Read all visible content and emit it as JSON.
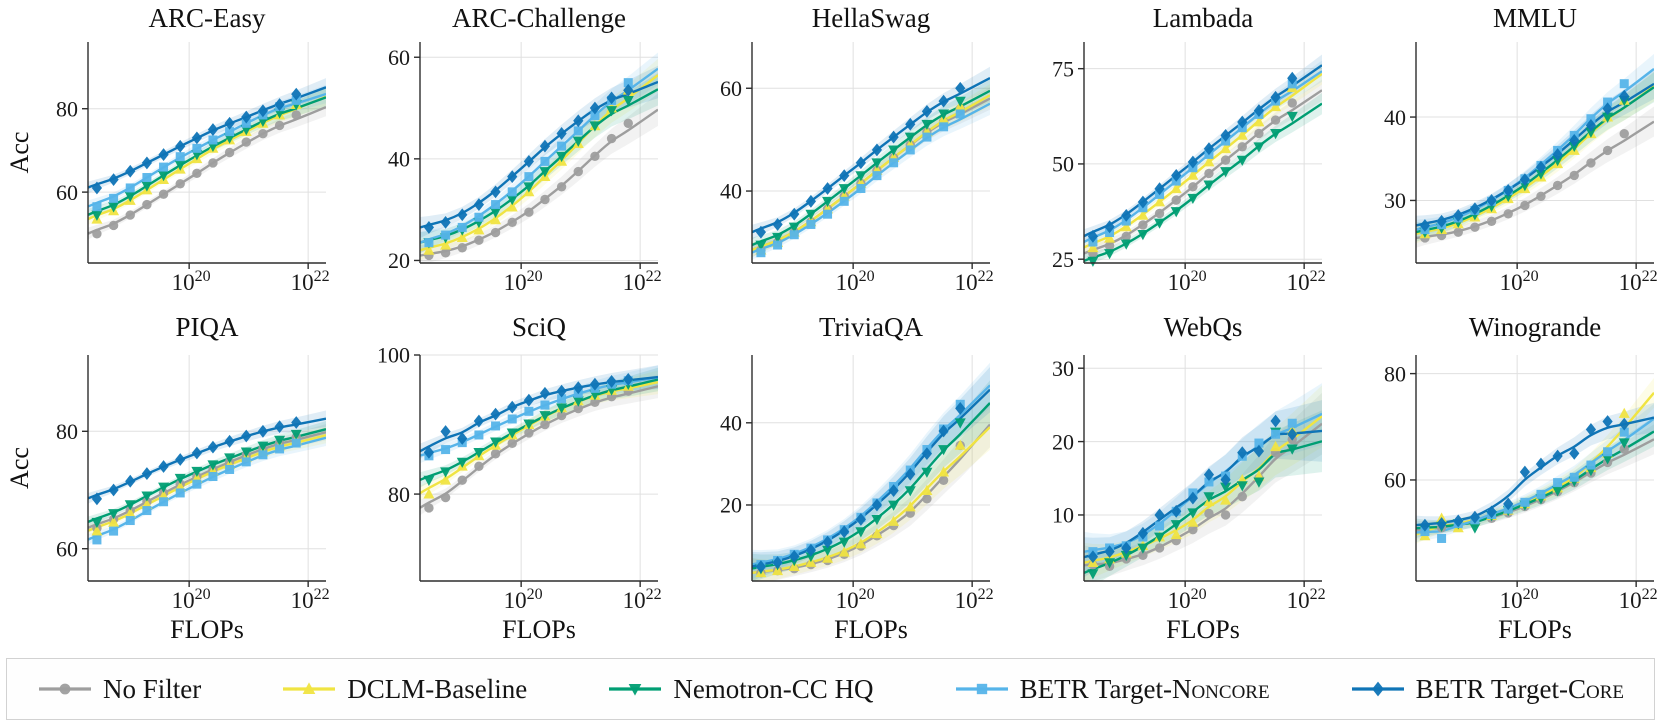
{
  "figure": {
    "ylabel": "Acc",
    "xlabel": "FLOPs",
    "xscale": "log10",
    "xlim_log10": [
      18.3,
      22.3
    ],
    "xticks": [
      {
        "base": "10",
        "exp": "20",
        "log": 20
      },
      {
        "base": "10",
        "exp": "22",
        "log": 22
      }
    ],
    "x_points_log10": [
      18.45,
      18.73,
      19.01,
      19.29,
      19.57,
      19.85,
      20.13,
      20.4,
      20.68,
      20.96,
      21.24,
      21.52,
      21.8
    ],
    "grid": true
  },
  "legend": {
    "position": "bottom",
    "items": [
      {
        "id": "no_filter",
        "label": "No Filter",
        "label_caps": "",
        "marker": "circle",
        "color": "#9e9e9e"
      },
      {
        "id": "dclm",
        "label": "DCLM-Baseline",
        "label_caps": "",
        "marker": "triangle-up",
        "color": "#F0E442"
      },
      {
        "id": "nemotron",
        "label": "Nemotron-CC HQ",
        "label_caps": "",
        "marker": "triangle-down",
        "color": "#009E73"
      },
      {
        "id": "noncore",
        "label": "BETR Target-N",
        "label_caps": "oncore",
        "marker": "square",
        "color": "#56B4E9"
      },
      {
        "id": "core",
        "label": "BETR Target-C",
        "label_caps": "ore",
        "marker": "diamond",
        "color": "#0F74B6"
      }
    ]
  },
  "chart_data": [
    {
      "type": "line",
      "title": "ARC-Easy",
      "ylim": [
        43,
        96
      ],
      "yticks": [
        60,
        80
      ],
      "band_scale": 2.2,
      "series": {
        "no_filter": [
          50,
          52,
          54.5,
          57,
          59.5,
          62,
          64.5,
          67,
          69.5,
          72,
          74,
          76,
          78.5
        ],
        "dclm": [
          53.5,
          55.5,
          58,
          60.5,
          63,
          65.5,
          68,
          70.5,
          72.5,
          74.5,
          76.5,
          78.5,
          81
        ],
        "nemotron": [
          54.5,
          56.5,
          59,
          61.5,
          64,
          66.5,
          69,
          71,
          73,
          75,
          77,
          79,
          81
        ],
        "noncore": [
          56.5,
          58.5,
          61,
          63.5,
          66,
          68.5,
          70.5,
          72.5,
          74.5,
          76.5,
          78.5,
          80.5,
          82
        ],
        "core": [
          61,
          63,
          65,
          67,
          69,
          71,
          73,
          75,
          76.5,
          78,
          79.5,
          81,
          83.5
        ]
      }
    },
    {
      "type": "line",
      "title": "ARC-Challenge",
      "ylim": [
        19.5,
        63
      ],
      "yticks": [
        20,
        40,
        60
      ],
      "band_scale": 3.2,
      "series": {
        "no_filter": [
          21,
          21.5,
          22.5,
          24,
          25.5,
          27.5,
          29.5,
          32,
          34.5,
          37.5,
          40.5,
          44,
          47
        ],
        "dclm": [
          22,
          23,
          24.5,
          26,
          28,
          30.5,
          33.5,
          36.5,
          39.5,
          43,
          46.5,
          50,
          53.5
        ],
        "nemotron": [
          23.5,
          24.5,
          26,
          27.5,
          29.5,
          32,
          34.5,
          37.5,
          40.5,
          43.5,
          46.5,
          49.5,
          51.5
        ],
        "noncore": [
          23.5,
          25,
          26.5,
          28.5,
          31,
          33.5,
          36.5,
          39.5,
          42.5,
          45.5,
          48.5,
          51.5,
          55
        ],
        "core": [
          26.5,
          27.5,
          29,
          31,
          33.5,
          36.5,
          39.5,
          42.5,
          45,
          47.5,
          50,
          52,
          53.5
        ]
      }
    },
    {
      "type": "line",
      "title": "HellaSwag",
      "ylim": [
        26,
        69
      ],
      "yticks": [
        40,
        60
      ],
      "band_scale": 2.2,
      "series": {
        "no_filter": [
          28.5,
          30,
          32,
          34,
          36.5,
          39,
          41.5,
          44,
          46.5,
          49,
          51.5,
          53.5,
          56
        ],
        "dclm": [
          28.5,
          30,
          32,
          34,
          36.5,
          39,
          41.5,
          44,
          46.5,
          49,
          51.5,
          54,
          56.5
        ],
        "nemotron": [
          29.5,
          31,
          33,
          35.5,
          38,
          40.5,
          43,
          45.5,
          48,
          50.5,
          53,
          55,
          57.5
        ],
        "noncore": [
          28,
          29.5,
          31.5,
          33.5,
          35.5,
          38,
          40.5,
          43,
          45.5,
          48,
          50.5,
          52.5,
          55
        ],
        "core": [
          32,
          33.5,
          35.5,
          38,
          40.5,
          43,
          45.5,
          48,
          50.5,
          53,
          55.5,
          57.5,
          60
        ]
      }
    },
    {
      "type": "line",
      "title": "Lambada",
      "ylim": [
        24,
        82
      ],
      "yticks": [
        25,
        50,
        75
      ],
      "band_scale": 2.8,
      "series": {
        "no_filter": [
          26.5,
          28.5,
          31,
          34,
          37,
          40.5,
          44,
          47.5,
          51,
          54.5,
          58,
          61.5,
          66
        ],
        "dclm": [
          28,
          30.5,
          33.5,
          36.5,
          40,
          43.5,
          47,
          50.5,
          54,
          57.5,
          61,
          65,
          70
        ],
        "nemotron": [
          24.5,
          26.5,
          29,
          31.5,
          34.5,
          37.5,
          41,
          44.5,
          48,
          51,
          54.5,
          58,
          62.5
        ],
        "noncore": [
          29.5,
          32,
          35,
          38.5,
          42,
          45.5,
          49,
          52.5,
          56,
          59.5,
          63,
          66.5,
          71
        ],
        "core": [
          31,
          33.5,
          36.5,
          40,
          43.5,
          47,
          50.5,
          54,
          57.5,
          61,
          64,
          67.5,
          72.5
        ]
      }
    },
    {
      "type": "line",
      "title": "MMLU",
      "ylim": [
        22.5,
        49
      ],
      "yticks": [
        30,
        40
      ],
      "band_scale": 1.8,
      "series": {
        "no_filter": [
          25.5,
          25.8,
          26.2,
          26.8,
          27.5,
          28.4,
          29.4,
          30.5,
          31.8,
          33,
          34.5,
          36,
          38
        ],
        "dclm": [
          26,
          26.5,
          27.2,
          28,
          29,
          30.2,
          31.4,
          32.8,
          34.4,
          36,
          38,
          40,
          42
        ],
        "nemotron": [
          26.2,
          26.7,
          27.4,
          28.3,
          29.3,
          30.5,
          31.8,
          33.2,
          34.8,
          36.5,
          38.2,
          40,
          42
        ],
        "noncore": [
          26.5,
          27.1,
          27.9,
          28.8,
          29.9,
          31.2,
          32.6,
          34.2,
          36,
          37.8,
          39.8,
          41.8,
          44
        ],
        "core": [
          27,
          27.5,
          28.2,
          29,
          30,
          31.2,
          32.5,
          34,
          35.5,
          37.2,
          39,
          41,
          42.5
        ]
      }
    },
    {
      "type": "line",
      "title": "PIQA",
      "ylim": [
        54.5,
        93
      ],
      "yticks": [
        60,
        80
      ],
      "band_scale": 1.4,
      "series": {
        "no_filter": [
          63.5,
          65,
          66.5,
          68,
          69.5,
          71,
          72.3,
          73.5,
          74.8,
          76,
          77,
          78,
          79
        ],
        "dclm": [
          63,
          64.5,
          66,
          67.5,
          69,
          70.5,
          72,
          73.2,
          74.3,
          75.5,
          76.5,
          77.5,
          78.5
        ],
        "nemotron": [
          64.5,
          66,
          67.5,
          69,
          70.5,
          72,
          73.2,
          74.3,
          75.5,
          76.5,
          77.5,
          78.5,
          79.5
        ],
        "noncore": [
          61.5,
          63,
          64.8,
          66.5,
          68,
          69.5,
          71,
          72.3,
          73.5,
          74.8,
          76,
          77,
          78
        ],
        "core": [
          68.5,
          70,
          71.5,
          72.8,
          74,
          75.2,
          76.3,
          77.3,
          78.3,
          79.2,
          80,
          80.8,
          81.5
        ]
      }
    },
    {
      "type": "line",
      "title": "SciQ",
      "ylim": [
        67.5,
        100
      ],
      "yticks": [
        80,
        100
      ],
      "band_scale": 1.7,
      "series": {
        "no_filter": [
          78,
          79.5,
          82,
          84,
          85.8,
          87.3,
          88.8,
          90,
          91.3,
          92.3,
          93.2,
          94,
          94.8
        ],
        "dclm": [
          80,
          82,
          84,
          85.5,
          87,
          88.5,
          90,
          91.2,
          92.4,
          93.4,
          94.2,
          94.9,
          95.5
        ],
        "nemotron": [
          82,
          83.2,
          84.6,
          86,
          87.5,
          88.8,
          90.1,
          91.3,
          92.4,
          93.4,
          94.3,
          95,
          95.8
        ],
        "noncore": [
          85.5,
          86.4,
          87.4,
          88.5,
          89.8,
          90.8,
          91.9,
          92.8,
          93.7,
          94.5,
          95.2,
          95.8,
          96.3
        ],
        "core": [
          86,
          89,
          88,
          90.5,
          91.5,
          92.5,
          93.5,
          94.5,
          94.8,
          95.3,
          95.8,
          96.2,
          96.5
        ]
      }
    },
    {
      "type": "line",
      "title": "TriviaQA",
      "ylim": [
        1.5,
        56.5
      ],
      "yticks": [
        20,
        40
      ],
      "band_scale": 5.5,
      "series": {
        "no_filter": [
          3.5,
          4,
          4.5,
          5.5,
          6.5,
          8,
          10,
          12.5,
          15,
          18,
          21.5,
          26,
          34.5
        ],
        "dclm": [
          3.5,
          4,
          5,
          6,
          7,
          8.5,
          10.5,
          13,
          16,
          19.5,
          23.5,
          28,
          34.5
        ],
        "nemotron": [
          4.5,
          5.5,
          6.5,
          7.5,
          9,
          11,
          13.5,
          16.5,
          20,
          23.5,
          28,
          33.5,
          40
        ],
        "noncore": [
          5.5,
          6.5,
          8,
          9.5,
          11.5,
          14,
          17,
          20.5,
          24.5,
          28.5,
          33.5,
          38.5,
          44.5
        ],
        "core": [
          5,
          6,
          7.5,
          9,
          11,
          13.5,
          16.5,
          20,
          23.5,
          27.5,
          32.5,
          38,
          43.5
        ]
      }
    },
    {
      "type": "line",
      "title": "WebQs",
      "ylim": [
        1,
        31.8
      ],
      "yticks": [
        10,
        20,
        30
      ],
      "band_scale": 4.2,
      "series": {
        "no_filter": [
          3.2,
          3,
          4,
          4.5,
          5.5,
          6.5,
          8,
          10.2,
          10,
          12.5,
          15,
          18.5,
          20.3
        ],
        "dclm": [
          3.5,
          4,
          4.8,
          5.8,
          7,
          7.3,
          9,
          11.8,
          12,
          14.8,
          15.3,
          19.3,
          21.5
        ],
        "nemotron": [
          2,
          3.5,
          4.5,
          5.5,
          7,
          8.7,
          10.3,
          12.5,
          13.8,
          14,
          14.5,
          21.3,
          19
        ],
        "noncore": [
          5,
          5.5,
          5.8,
          7,
          8.5,
          10.5,
          13,
          14.5,
          15.3,
          18,
          19.8,
          21,
          22.5
        ],
        "core": [
          4.3,
          5,
          5.5,
          7.5,
          10,
          10.5,
          12.3,
          15.5,
          14.8,
          18.5,
          18.7,
          22.8,
          21
        ]
      }
    },
    {
      "type": "line",
      "title": "Winogrande",
      "ylim": [
        41,
        83.5
      ],
      "yticks": [
        60,
        80
      ],
      "band_scale": 2.8,
      "series": {
        "no_filter": [
          50.5,
          51,
          51.5,
          52,
          52.8,
          53.8,
          55,
          56.3,
          57.8,
          59.5,
          61.3,
          63.3,
          65.8
        ],
        "dclm": [
          49.5,
          52.8,
          51,
          52.3,
          53.3,
          54.3,
          55.5,
          57,
          58.5,
          60.3,
          62.3,
          65,
          72.5
        ],
        "nemotron": [
          50.8,
          51.3,
          51.8,
          51,
          53.3,
          54.3,
          55.3,
          56.5,
          58,
          59.8,
          61.8,
          64,
          67
        ],
        "noncore": [
          50.3,
          49,
          51.8,
          52.5,
          53.5,
          54.5,
          55.8,
          57.3,
          59.5,
          60.5,
          62.8,
          65.3,
          69
        ],
        "core": [
          51.5,
          51.8,
          52.3,
          53,
          54,
          55.5,
          61.5,
          63,
          64.5,
          65,
          69.5,
          71,
          70.5
        ]
      }
    }
  ]
}
